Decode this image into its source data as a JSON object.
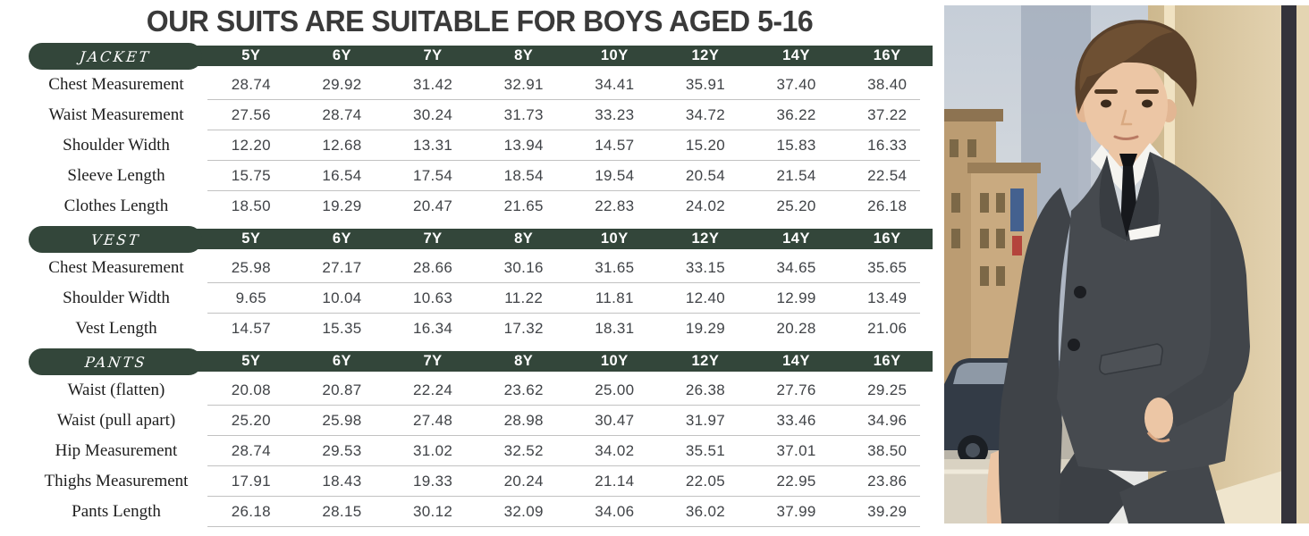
{
  "chart_data": {
    "type": "table",
    "title": "OUR SUITS ARE SUITABLE FOR BOYS AGED 5-16",
    "columns": [
      "5Y",
      "6Y",
      "7Y",
      "8Y",
      "10Y",
      "12Y",
      "14Y",
      "16Y"
    ],
    "sections": [
      {
        "name": "JACKET",
        "rows": [
          {
            "label": "Chest Measurement",
            "values": [
              "28.74",
              "29.92",
              "31.42",
              "32.91",
              "34.41",
              "35.91",
              "37.40",
              "38.40"
            ]
          },
          {
            "label": "Waist Measurement",
            "values": [
              "27.56",
              "28.74",
              "30.24",
              "31.73",
              "33.23",
              "34.72",
              "36.22",
              "37.22"
            ]
          },
          {
            "label": "Shoulder Width",
            "values": [
              "12.20",
              "12.68",
              "13.31",
              "13.94",
              "14.57",
              "15.20",
              "15.83",
              "16.33"
            ]
          },
          {
            "label": "Sleeve Length",
            "values": [
              "15.75",
              "16.54",
              "17.54",
              "18.54",
              "19.54",
              "20.54",
              "21.54",
              "22.54"
            ]
          },
          {
            "label": "Clothes Length",
            "values": [
              "18.50",
              "19.29",
              "20.47",
              "21.65",
              "22.83",
              "24.02",
              "25.20",
              "26.18"
            ]
          }
        ]
      },
      {
        "name": "VEST",
        "rows": [
          {
            "label": "Chest Measurement",
            "values": [
              "25.98",
              "27.17",
              "28.66",
              "30.16",
              "31.65",
              "33.15",
              "34.65",
              "35.65"
            ]
          },
          {
            "label": "Shoulder Width",
            "values": [
              "9.65",
              "10.04",
              "10.63",
              "11.22",
              "11.81",
              "12.40",
              "12.99",
              "13.49"
            ]
          },
          {
            "label": "Vest Length",
            "values": [
              "14.57",
              "15.35",
              "16.34",
              "17.32",
              "18.31",
              "19.29",
              "20.28",
              "21.06"
            ]
          }
        ]
      },
      {
        "name": "PANTS",
        "rows": [
          {
            "label": "Waist (flatten)",
            "values": [
              "20.08",
              "20.87",
              "22.24",
              "23.62",
              "25.00",
              "26.38",
              "27.76",
              "29.25"
            ]
          },
          {
            "label": "Waist (pull apart)",
            "values": [
              "25.20",
              "25.98",
              "27.48",
              "28.98",
              "30.47",
              "31.97",
              "33.46",
              "34.96"
            ]
          },
          {
            "label": "Hip Measurement",
            "values": [
              "28.74",
              "29.53",
              "31.02",
              "32.52",
              "34.02",
              "35.51",
              "37.01",
              "38.50"
            ]
          },
          {
            "label": "Thighs Measurement",
            "values": [
              "17.91",
              "18.43",
              "19.33",
              "20.24",
              "21.14",
              "22.05",
              "22.95",
              "23.86"
            ]
          },
          {
            "label": "Pants Length",
            "values": [
              "26.18",
              "28.15",
              "30.12",
              "32.09",
              "34.06",
              "36.02",
              "37.99",
              "39.29"
            ]
          }
        ]
      }
    ]
  },
  "photo": {
    "subject": "boy-in-charcoal-grey-suit-on-city-street"
  },
  "theme": {
    "accent-green": "#33463a",
    "title-color": "#3a3a3a",
    "label-color": "#1e1e1e",
    "number-color": "#404347",
    "line-color": "#c2c2c2",
    "photo-sky": "#c9d0d9",
    "photo-wall": "#ddc89f",
    "photo-suit": "#464a4f",
    "photo-skin": "#ecc6a5",
    "photo-hair": "#5a412b"
  }
}
